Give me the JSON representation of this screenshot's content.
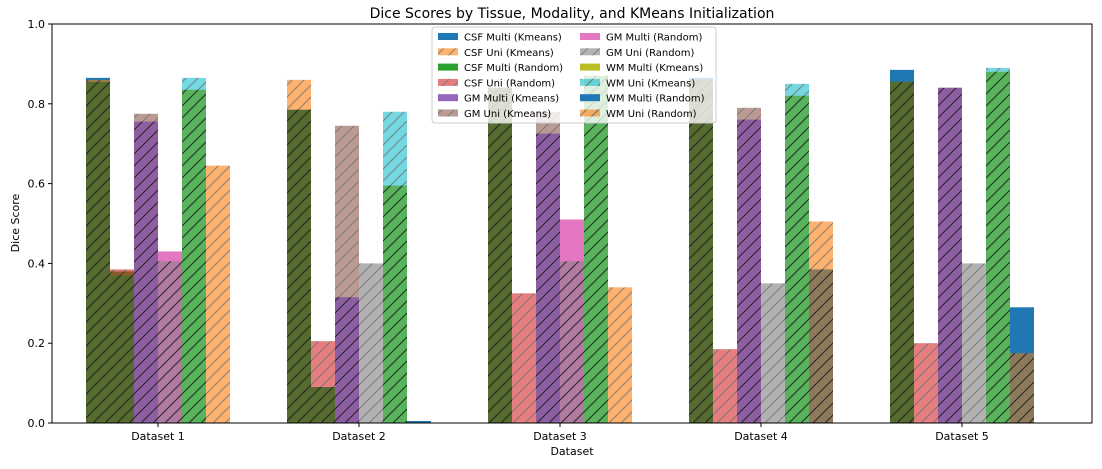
{
  "chart_data": {
    "type": "bar",
    "title": "Dice Scores by Tissue, Modality, and KMeans Initialization",
    "xlabel": "Dataset",
    "ylabel": "Dice Score",
    "ylim": [
      0,
      1.0
    ],
    "yticks": [
      "0.0",
      "0.2",
      "0.4",
      "0.6",
      "0.8",
      "1.0"
    ],
    "grid": false,
    "legend_position": "top-center",
    "categories": [
      "Dataset 1",
      "Dataset 2",
      "Dataset 3",
      "Dataset 4",
      "Dataset 5"
    ],
    "series": [
      {
        "name": "CSF Multi (Kmeans)",
        "color": "#1f77b4",
        "hatch": false,
        "slot": 0,
        "values": [
          0.865,
          0.785,
          0.84,
          0.865,
          0.885
        ]
      },
      {
        "name": "CSF Uni (Kmeans)",
        "color": "#ff7f0e",
        "hatch": true,
        "slot": 0,
        "values": [
          0.86,
          0.86,
          0.84,
          0.86,
          0.855
        ]
      },
      {
        "name": "CSF Multi (Random)",
        "color": "#2ca02c",
        "hatch": false,
        "slot": 1,
        "values": [
          0.38,
          0.09,
          0.0,
          0.0,
          0.0
        ]
      },
      {
        "name": "CSF Uni (Random)",
        "color": "#d62728",
        "hatch": true,
        "slot": 1,
        "values": [
          0.385,
          0.205,
          0.325,
          0.185,
          0.2
        ]
      },
      {
        "name": "GM Multi (Kmeans)",
        "color": "#9467bd",
        "hatch": false,
        "slot": 2,
        "values": [
          0.755,
          0.315,
          0.725,
          0.76,
          0.84
        ]
      },
      {
        "name": "GM Uni (Kmeans)",
        "color": "#8c564b",
        "hatch": true,
        "slot": 2,
        "values": [
          0.775,
          0.745,
          0.78,
          0.79,
          0.84
        ]
      },
      {
        "name": "GM Multi (Random)",
        "color": "#e377c2",
        "hatch": false,
        "slot": 3,
        "values": [
          0.43,
          0.0,
          0.51,
          0.0,
          0.0
        ]
      },
      {
        "name": "GM Uni (Random)",
        "color": "#7f7f7f",
        "hatch": true,
        "slot": 3,
        "values": [
          0.405,
          0.4,
          0.405,
          0.35,
          0.4
        ]
      },
      {
        "name": "WM Multi (Kmeans)",
        "color": "#bcbd22",
        "hatch": false,
        "slot": 4,
        "values": [
          0.835,
          0.595,
          0.87,
          0.82,
          0.88
        ]
      },
      {
        "name": "WM Uni (Kmeans)",
        "color": "#17becf",
        "hatch": true,
        "slot": 4,
        "values": [
          0.865,
          0.78,
          0.87,
          0.85,
          0.89
        ]
      },
      {
        "name": "WM Multi (Random)",
        "color": "#1f77b4",
        "hatch": false,
        "slot": 5,
        "values": [
          0.0,
          0.005,
          0.0,
          0.0,
          0.29
        ]
      },
      {
        "name": "WM Uni (Random)",
        "color": "#ff7f0e",
        "hatch": true,
        "slot": 5,
        "values": [
          0.645,
          0.0,
          0.34,
          0.505,
          0.0
        ]
      }
    ],
    "overlay_layers": [
      {
        "slot": 0,
        "color": "#556b2f",
        "hatch": true,
        "values": [
          0.855,
          0.785,
          0.84,
          0.86,
          0.855
        ]
      },
      {
        "slot": 1,
        "color": "#556b2f",
        "hatch": true,
        "values": [
          0.37,
          0.09,
          0.0,
          0.0,
          0.0
        ]
      },
      {
        "slot": 2,
        "color": "#8e5ea2",
        "hatch": true,
        "values": [
          0.755,
          0.315,
          0.725,
          0.76,
          0.84
        ]
      },
      {
        "slot": 3,
        "color": "#b07aa1",
        "hatch": true,
        "values": [
          0.405,
          0.0,
          0.405,
          0.0,
          0.0
        ]
      },
      {
        "slot": 4,
        "color": "#59b35c",
        "hatch": true,
        "values": [
          0.835,
          0.595,
          0.87,
          0.82,
          0.88
        ]
      },
      {
        "slot": 5,
        "color": "#8c7a5b",
        "hatch": true,
        "values": [
          0.0,
          0.0,
          0.0,
          0.385,
          0.175
        ]
      }
    ]
  }
}
